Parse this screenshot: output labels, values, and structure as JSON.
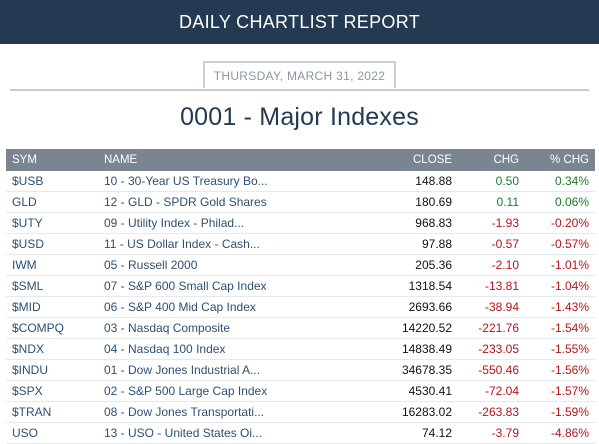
{
  "header": {
    "title": "DAILY CHARTLIST REPORT"
  },
  "report": {
    "date": "THURSDAY, MARCH 31, 2022",
    "title": "0001 - Major Indexes"
  },
  "table": {
    "columns": [
      "SYM",
      "NAME",
      "CLOSE",
      "CHG",
      "% CHG"
    ],
    "rows": [
      {
        "sym": "$USB",
        "name": "10 - 30-Year US Treasury Bo...",
        "close": "148.88",
        "chg": "0.50",
        "pct": "0.34%",
        "dir": "pos"
      },
      {
        "sym": "GLD",
        "name": "12 - GLD - SPDR Gold Shares",
        "close": "180.69",
        "chg": "0.11",
        "pct": "0.06%",
        "dir": "pos"
      },
      {
        "sym": "$UTY",
        "name": "09 - Utility Index - Philad...",
        "close": "968.83",
        "chg": "-1.93",
        "pct": "-0.20%",
        "dir": "neg"
      },
      {
        "sym": "$USD",
        "name": "11 - US Dollar Index - Cash...",
        "close": "97.88",
        "chg": "-0.57",
        "pct": "-0.57%",
        "dir": "neg"
      },
      {
        "sym": "IWM",
        "name": "05 - Russell 2000",
        "close": "205.36",
        "chg": "-2.10",
        "pct": "-1.01%",
        "dir": "neg"
      },
      {
        "sym": "$SML",
        "name": "07 - S&P 600 Small Cap Index",
        "close": "1318.54",
        "chg": "-13.81",
        "pct": "-1.04%",
        "dir": "neg"
      },
      {
        "sym": "$MID",
        "name": "06 - S&P 400 Mid Cap Index",
        "close": "2693.66",
        "chg": "-38.94",
        "pct": "-1.43%",
        "dir": "neg"
      },
      {
        "sym": "$COMPQ",
        "name": "03 - Nasdaq Composite",
        "close": "14220.52",
        "chg": "-221.76",
        "pct": "-1.54%",
        "dir": "neg"
      },
      {
        "sym": "$NDX",
        "name": "04 - Nasdaq 100 Index",
        "close": "14838.49",
        "chg": "-233.05",
        "pct": "-1.55%",
        "dir": "neg"
      },
      {
        "sym": "$INDU",
        "name": "01 - Dow Jones Industrial A...",
        "close": "34678.35",
        "chg": "-550.46",
        "pct": "-1.56%",
        "dir": "neg"
      },
      {
        "sym": "$SPX",
        "name": "02 - S&P 500 Large Cap Index",
        "close": "4530.41",
        "chg": "-72.04",
        "pct": "-1.57%",
        "dir": "neg"
      },
      {
        "sym": "$TRAN",
        "name": "08 - Dow Jones Transportati...",
        "close": "16283.02",
        "chg": "-263.83",
        "pct": "-1.59%",
        "dir": "neg"
      },
      {
        "sym": "USO",
        "name": "13 - USO - United States Oi...",
        "close": "74.12",
        "chg": "-3.79",
        "pct": "-4.86%",
        "dir": "neg"
      }
    ]
  }
}
